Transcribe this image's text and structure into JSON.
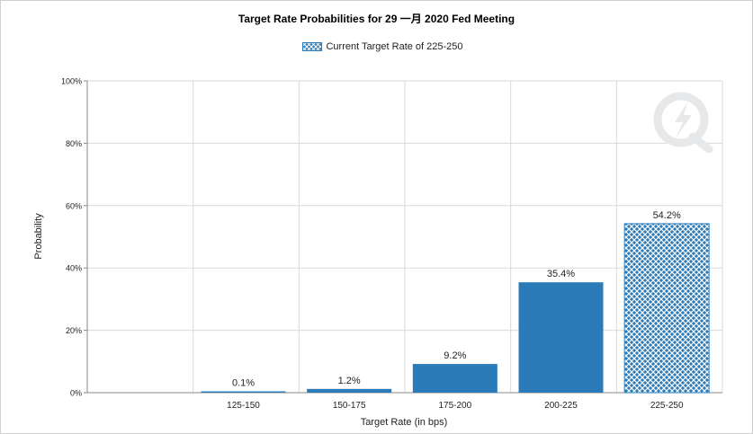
{
  "chart_data": {
    "type": "bar",
    "title": "Target Rate Probabilities for 29 一月 2020 Fed Meeting",
    "xlabel": "Target Rate (in bps)",
    "ylabel": "Probability",
    "ylim": [
      0,
      100
    ],
    "yticks": [
      0,
      20,
      40,
      60,
      80,
      100
    ],
    "ytick_labels": [
      "0%",
      "20%",
      "40%",
      "60%",
      "80%",
      "100%"
    ],
    "categories": [
      "125-150",
      "150-175",
      "175-200",
      "200-225",
      "225-250"
    ],
    "values": [
      0.1,
      1.2,
      9.2,
      35.4,
      54.2
    ],
    "data_labels": [
      "0.1%",
      "1.2%",
      "9.2%",
      "35.4%",
      "54.2%"
    ],
    "current_category": "225-250",
    "grid": true,
    "legend": {
      "placement": "top-center",
      "entries": [
        "Current Target Rate of 225-250"
      ]
    },
    "colors": {
      "bar": "#2b7bb9",
      "hatch": "#2b7bb9",
      "grid": "#d9d9d9",
      "axis": "#888888"
    }
  }
}
